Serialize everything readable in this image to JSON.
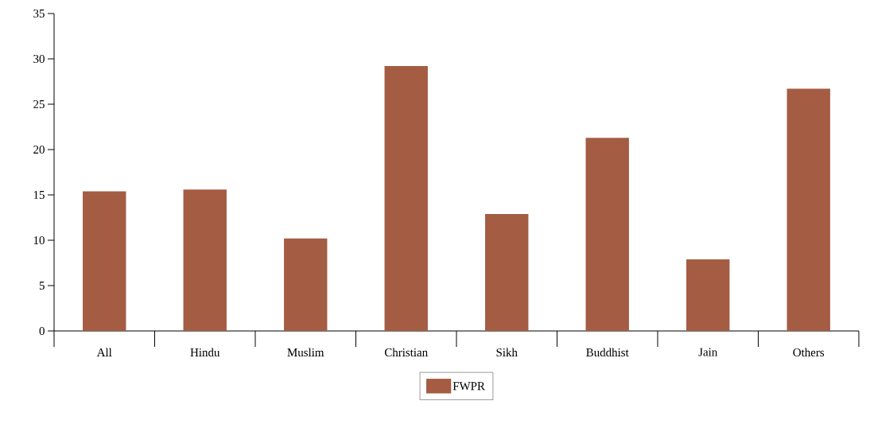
{
  "chart_data": {
    "type": "bar",
    "categories": [
      "All",
      "Hindu",
      "Muslim",
      "Christian",
      "Sikh",
      "Buddhist",
      "Jain",
      "Others"
    ],
    "series": [
      {
        "name": "FWPR",
        "color": "#a45c43",
        "values": [
          15.4,
          15.6,
          10.2,
          29.2,
          12.9,
          21.3,
          7.9,
          26.7
        ]
      }
    ],
    "ylim": [
      0,
      35
    ],
    "yticks": [
      0,
      5,
      10,
      15,
      20,
      25,
      30,
      35
    ],
    "grid": false,
    "legend": "bottom"
  }
}
